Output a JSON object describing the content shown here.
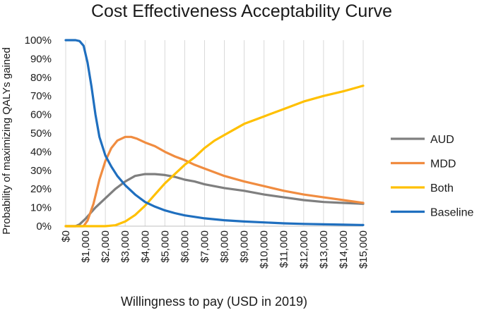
{
  "chart_data": {
    "type": "line",
    "title": "Cost Effectiveness Acceptability Curve",
    "xlabel": "Willingness to pay (USD in 2019)",
    "ylabel": "Probability of maximizing QALYs gained",
    "xlim": [
      0,
      15000
    ],
    "ylim": [
      0,
      1
    ],
    "grid": "vertical",
    "legend": "right",
    "x_tick_values": [
      0,
      1000,
      2000,
      3000,
      4000,
      5000,
      6000,
      7000,
      8000,
      9000,
      10000,
      11000,
      12000,
      13000,
      14000,
      15000
    ],
    "x_tick_labels": [
      "$0",
      "$1,000",
      "$2,000",
      "$3,000",
      "$4,000",
      "$5,000",
      "$6,000",
      "$7,000",
      "$8,000",
      "$9,000",
      "$10,000",
      "$11,000",
      "$12,000",
      "$13,000",
      "$14,000",
      "$15,000"
    ],
    "y_tick_values": [
      0,
      0.1,
      0.2,
      0.3,
      0.4,
      0.5,
      0.6,
      0.7,
      0.8,
      0.9,
      1.0
    ],
    "y_tick_labels": [
      "0%",
      "10%",
      "20%",
      "30%",
      "40%",
      "50%",
      "60%",
      "70%",
      "80%",
      "90%",
      "100%"
    ],
    "series": [
      {
        "name": "AUD",
        "color": "#7f7f7f",
        "points": [
          [
            0,
            0
          ],
          [
            500,
            0
          ],
          [
            700,
            0.01
          ],
          [
            1000,
            0.04
          ],
          [
            1500,
            0.1
          ],
          [
            2000,
            0.15
          ],
          [
            2500,
            0.2
          ],
          [
            3000,
            0.24
          ],
          [
            3500,
            0.27
          ],
          [
            4000,
            0.28
          ],
          [
            4500,
            0.28
          ],
          [
            5000,
            0.275
          ],
          [
            5500,
            0.265
          ],
          [
            6000,
            0.25
          ],
          [
            6500,
            0.24
          ],
          [
            7000,
            0.225
          ],
          [
            8000,
            0.205
          ],
          [
            9000,
            0.19
          ],
          [
            10000,
            0.17
          ],
          [
            11000,
            0.155
          ],
          [
            12000,
            0.14
          ],
          [
            13000,
            0.13
          ],
          [
            14000,
            0.125
          ],
          [
            15000,
            0.12
          ]
        ]
      },
      {
        "name": "MDD",
        "color": "#f08c40",
        "points": [
          [
            0,
            0
          ],
          [
            900,
            0
          ],
          [
            1100,
            0.03
          ],
          [
            1400,
            0.12
          ],
          [
            1700,
            0.25
          ],
          [
            2000,
            0.35
          ],
          [
            2300,
            0.42
          ],
          [
            2600,
            0.46
          ],
          [
            3000,
            0.48
          ],
          [
            3300,
            0.48
          ],
          [
            3600,
            0.47
          ],
          [
            4000,
            0.45
          ],
          [
            4500,
            0.43
          ],
          [
            5000,
            0.4
          ],
          [
            5500,
            0.375
          ],
          [
            6000,
            0.355
          ],
          [
            6500,
            0.33
          ],
          [
            7000,
            0.31
          ],
          [
            8000,
            0.27
          ],
          [
            9000,
            0.24
          ],
          [
            10000,
            0.215
          ],
          [
            11000,
            0.19
          ],
          [
            12000,
            0.17
          ],
          [
            13000,
            0.155
          ],
          [
            14000,
            0.14
          ],
          [
            15000,
            0.125
          ]
        ]
      },
      {
        "name": "Both",
        "color": "#ffc000",
        "points": [
          [
            0,
            0
          ],
          [
            2000,
            0
          ],
          [
            2500,
            0.005
          ],
          [
            3000,
            0.025
          ],
          [
            3500,
            0.06
          ],
          [
            4000,
            0.11
          ],
          [
            4500,
            0.17
          ],
          [
            5000,
            0.23
          ],
          [
            5500,
            0.28
          ],
          [
            6000,
            0.33
          ],
          [
            6500,
            0.37
          ],
          [
            7000,
            0.42
          ],
          [
            7500,
            0.46
          ],
          [
            8000,
            0.49
          ],
          [
            8500,
            0.52
          ],
          [
            9000,
            0.55
          ],
          [
            10000,
            0.59
          ],
          [
            11000,
            0.63
          ],
          [
            12000,
            0.67
          ],
          [
            13000,
            0.7
          ],
          [
            14000,
            0.725
          ],
          [
            15000,
            0.755
          ]
        ]
      },
      {
        "name": "Baseline",
        "color": "#1f6fbf",
        "points": [
          [
            0,
            1.0
          ],
          [
            500,
            1.0
          ],
          [
            700,
            0.995
          ],
          [
            900,
            0.97
          ],
          [
            1100,
            0.88
          ],
          [
            1300,
            0.75
          ],
          [
            1500,
            0.6
          ],
          [
            1700,
            0.48
          ],
          [
            2000,
            0.38
          ],
          [
            2300,
            0.32
          ],
          [
            2600,
            0.27
          ],
          [
            3000,
            0.22
          ],
          [
            3500,
            0.17
          ],
          [
            4000,
            0.13
          ],
          [
            4500,
            0.105
          ],
          [
            5000,
            0.085
          ],
          [
            5500,
            0.07
          ],
          [
            6000,
            0.058
          ],
          [
            7000,
            0.042
          ],
          [
            8000,
            0.032
          ],
          [
            9000,
            0.025
          ],
          [
            10000,
            0.02
          ],
          [
            11000,
            0.015
          ],
          [
            12000,
            0.012
          ],
          [
            13000,
            0.01
          ],
          [
            14000,
            0.008
          ],
          [
            15000,
            0.006
          ]
        ]
      }
    ]
  }
}
